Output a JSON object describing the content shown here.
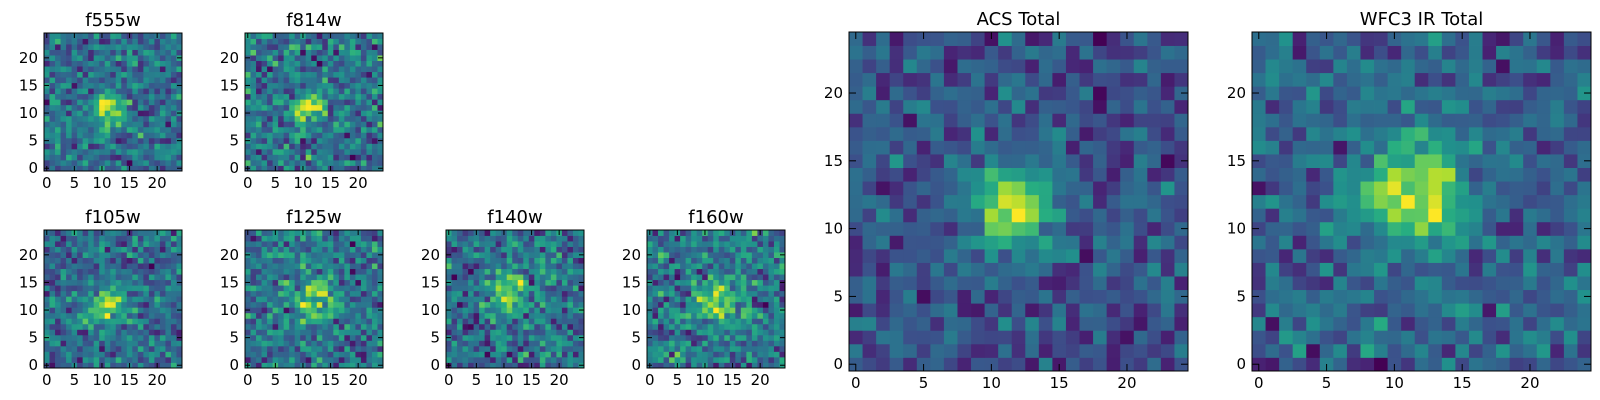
{
  "chart_data": [
    {
      "type": "heatmap",
      "title": "f555w",
      "xlim": [
        -0.5,
        24.5
      ],
      "ylim": [
        -0.5,
        24.5
      ],
      "xticks": [
        0,
        5,
        10,
        15,
        20
      ],
      "yticks": [
        0,
        5,
        10,
        15,
        20
      ],
      "grid_size": [
        25,
        25
      ],
      "colormap": "viridis",
      "source_center": [
        11,
        11
      ],
      "source_radius": 2.0,
      "noise_level": 0.6,
      "seed": 11
    },
    {
      "type": "heatmap",
      "title": "f814w",
      "xlim": [
        -0.5,
        24.5
      ],
      "ylim": [
        -0.5,
        24.5
      ],
      "xticks": [
        0,
        5,
        10,
        15,
        20
      ],
      "yticks": [
        0,
        5,
        10,
        15,
        20
      ],
      "grid_size": [
        25,
        25
      ],
      "colormap": "viridis",
      "source_center": [
        11,
        11
      ],
      "source_radius": 1.6,
      "noise_level": 0.6,
      "seed": 23
    },
    {
      "type": "heatmap",
      "title": "f105w",
      "xlim": [
        -0.5,
        24.5
      ],
      "ylim": [
        -0.5,
        24.5
      ],
      "xticks": [
        0,
        5,
        10,
        15,
        20
      ],
      "yticks": [
        0,
        5,
        10,
        15,
        20
      ],
      "grid_size": [
        25,
        25
      ],
      "colormap": "viridis",
      "source_center": [
        11,
        11
      ],
      "source_radius": 2.5,
      "noise_level": 0.75,
      "seed": 37
    },
    {
      "type": "heatmap",
      "title": "f125w",
      "xlim": [
        -0.5,
        24.5
      ],
      "ylim": [
        -0.5,
        24.5
      ],
      "xticks": [
        0,
        5,
        10,
        15,
        20
      ],
      "yticks": [
        0,
        5,
        10,
        15,
        20
      ],
      "grid_size": [
        25,
        25
      ],
      "colormap": "viridis",
      "source_center": [
        12,
        12
      ],
      "source_radius": 2.5,
      "noise_level": 0.8,
      "seed": 41
    },
    {
      "type": "heatmap",
      "title": "f140w",
      "xlim": [
        -0.5,
        24.5
      ],
      "ylim": [
        -0.5,
        24.5
      ],
      "xticks": [
        0,
        5,
        10,
        15,
        20
      ],
      "yticks": [
        0,
        5,
        10,
        15,
        20
      ],
      "grid_size": [
        25,
        25
      ],
      "colormap": "viridis",
      "source_center": [
        11,
        13
      ],
      "source_radius": 2.5,
      "noise_level": 0.75,
      "seed": 53
    },
    {
      "type": "heatmap",
      "title": "f160w",
      "xlim": [
        -0.5,
        24.5
      ],
      "ylim": [
        -0.5,
        24.5
      ],
      "xticks": [
        0,
        5,
        10,
        15,
        20
      ],
      "yticks": [
        0,
        5,
        10,
        15,
        20
      ],
      "grid_size": [
        25,
        25
      ],
      "colormap": "viridis",
      "source_center": [
        12,
        12
      ],
      "source_radius": 2.5,
      "noise_level": 0.75,
      "seed": 67
    },
    {
      "type": "heatmap",
      "title": "ACS Total",
      "xlim": [
        -0.5,
        24.5
      ],
      "ylim": [
        -0.5,
        24.5
      ],
      "xticks": [
        0,
        5,
        10,
        15,
        20
      ],
      "yticks": [
        0,
        5,
        10,
        15,
        20
      ],
      "grid_size": [
        25,
        25
      ],
      "colormap": "viridis",
      "source_center": [
        11.5,
        11.5
      ],
      "source_radius": 2.0,
      "noise_level": 0.35,
      "seed": 79
    },
    {
      "type": "heatmap",
      "title": "WFC3 IR Total",
      "xlim": [
        -0.5,
        24.5
      ],
      "ylim": [
        -0.5,
        24.5
      ],
      "xticks": [
        0,
        5,
        10,
        15,
        20
      ],
      "yticks": [
        0,
        5,
        10,
        15,
        20
      ],
      "grid_size": [
        25,
        25
      ],
      "colormap": "viridis",
      "source_center": [
        11.5,
        12.5
      ],
      "source_radius": 2.5,
      "noise_level": 0.4,
      "seed": 97
    }
  ]
}
